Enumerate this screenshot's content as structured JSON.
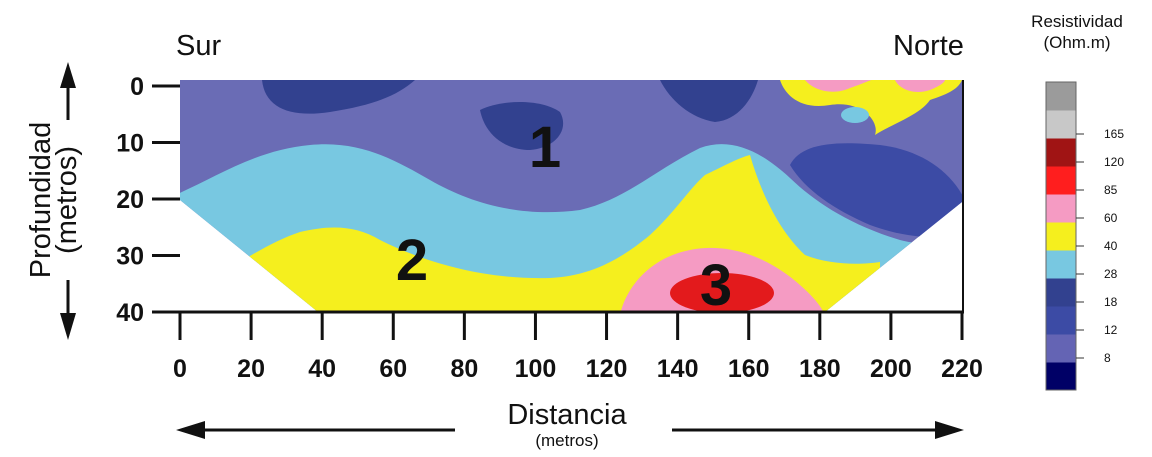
{
  "chart_data": {
    "type": "heatmap",
    "direction_left": "Sur",
    "direction_right": "Norte",
    "xlabel": "Distancia",
    "xlabel_unit": "(metros)",
    "ylabel": "Profundidad",
    "ylabel_unit": "(metros)",
    "x_ticks": [
      "0",
      "20",
      "40",
      "60",
      "80",
      "100",
      "120",
      "140",
      "160",
      "180",
      "200",
      "220"
    ],
    "y_ticks": [
      "0",
      "10",
      "20",
      "30",
      "40"
    ],
    "xlim": [
      0,
      220
    ],
    "ylim": [
      0,
      40
    ],
    "zones": [
      {
        "label": "1",
        "x": 103,
        "depth": 11,
        "color": "#ffffff"
      },
      {
        "label": "2",
        "x": 62,
        "depth": 31,
        "color": "#111111"
      },
      {
        "label": "3",
        "x": 150,
        "depth": 36,
        "color": "#111111"
      }
    ],
    "colorbar": {
      "title_line1": "Resistividad",
      "title_line2": "(Ohm.m)",
      "colors": [
        "#000066",
        "#6464b4",
        "#3c4ba5",
        "#32418f",
        "#78c8e1",
        "#f5ef1e",
        "#f59bc3",
        "#ff1e1e",
        "#a01414",
        "#c8c8c8",
        "#9b9b9b"
      ],
      "labels": [
        "8",
        "12",
        "18",
        "28",
        "40",
        "60",
        "85",
        "120",
        "165"
      ]
    }
  }
}
